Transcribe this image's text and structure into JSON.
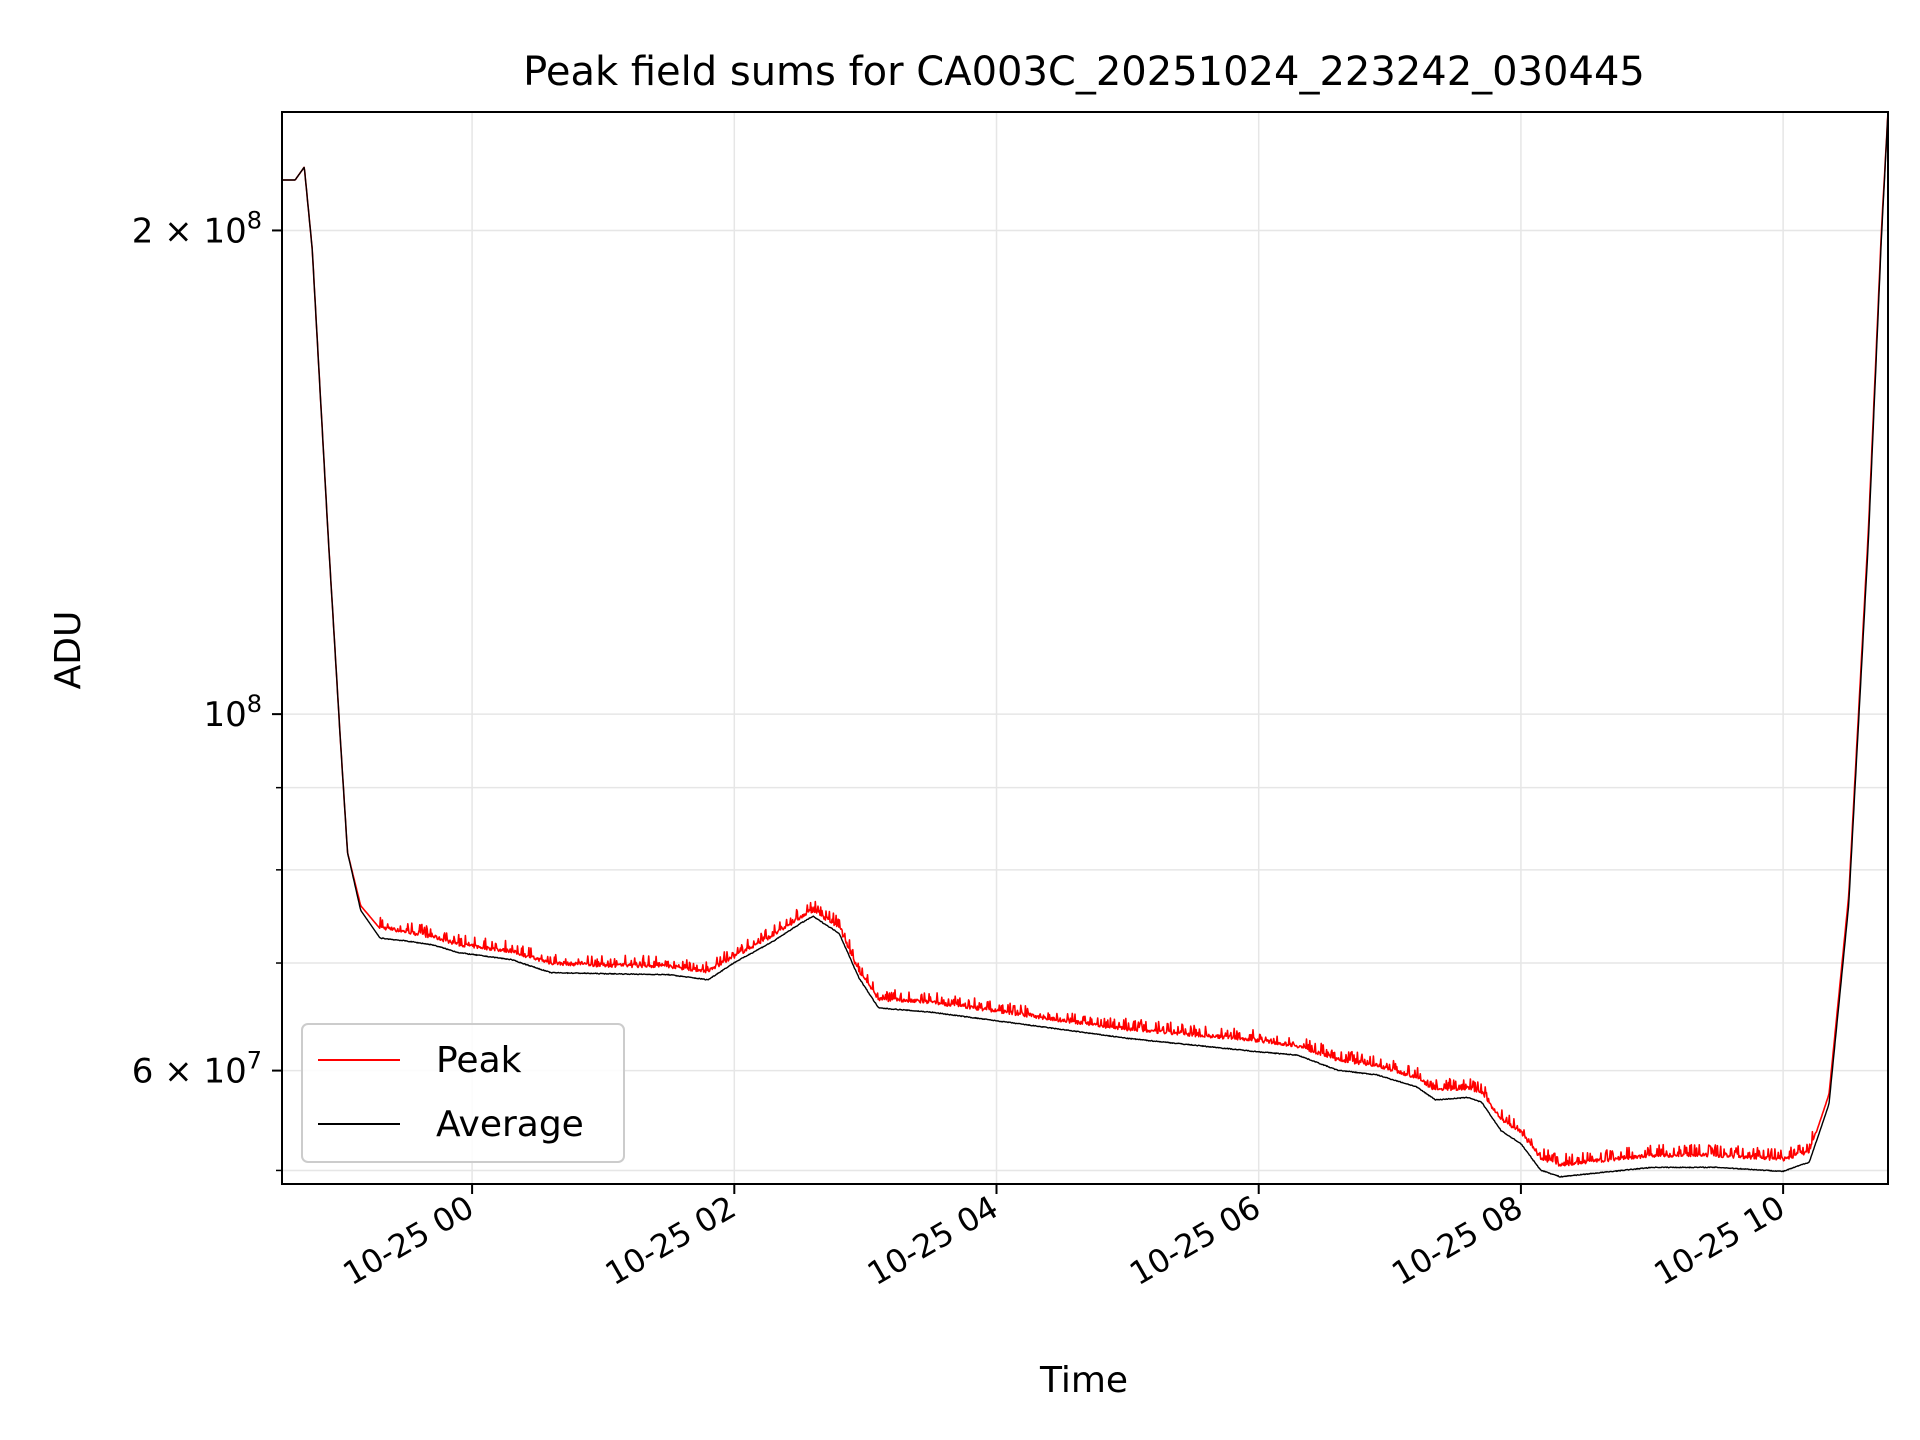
{
  "chart_data": {
    "type": "line",
    "title": "Peak field sums for CA003C_20251024_223242_030445",
    "xlabel": "Time",
    "ylabel": "ADU",
    "yscale": "log",
    "xlim_hours": [
      -1.45,
      10.8
    ],
    "ylim": [
      51000000,
      237000000
    ],
    "grid": true,
    "legend_position": "lower-left",
    "x_ticks": [
      {
        "hour": 0,
        "label": "10-25 00"
      },
      {
        "hour": 2,
        "label": "10-25 02"
      },
      {
        "hour": 4,
        "label": "10-25 04"
      },
      {
        "hour": 6,
        "label": "10-25 06"
      },
      {
        "hour": 8,
        "label": "10-25 08"
      },
      {
        "hour": 10,
        "label": "10-25 10"
      }
    ],
    "y_ticks_major": [
      {
        "value": 100000000,
        "base": "10",
        "exp": "8",
        "mantissa": ""
      },
      {
        "value": 200000000,
        "base": "10",
        "exp": "8",
        "mantissa": "2 × "
      },
      {
        "value": 60000000,
        "base": "10",
        "exp": "7",
        "mantissa": "6 × "
      }
    ],
    "y_ticks_minor": [
      70000000,
      80000000,
      90000000,
      52000000
    ],
    "x_hours_relative_to": "10-25 00",
    "series": [
      {
        "name": "Peak",
        "color": "#ff0000",
        "points": [
          [
            -1.45,
            215000000
          ],
          [
            -1.35,
            215000000
          ],
          [
            -1.28,
            219000000
          ],
          [
            -1.22,
            195000000
          ],
          [
            -1.1,
            130000000
          ],
          [
            -1.0,
            95000000
          ],
          [
            -0.95,
            82000000
          ],
          [
            -0.85,
            76000000
          ],
          [
            -0.7,
            73500000
          ],
          [
            -0.5,
            73000000
          ],
          [
            -0.3,
            72500000
          ],
          [
            -0.1,
            71700000
          ],
          [
            0.3,
            71000000
          ],
          [
            0.6,
            69800000
          ],
          [
            1.0,
            69600000
          ],
          [
            1.5,
            69500000
          ],
          [
            1.8,
            69000000
          ],
          [
            2.0,
            70500000
          ],
          [
            2.3,
            72700000
          ],
          [
            2.5,
            74500000
          ],
          [
            2.6,
            75300000
          ],
          [
            2.8,
            73500000
          ],
          [
            2.95,
            69000000
          ],
          [
            3.1,
            66300000
          ],
          [
            3.5,
            66000000
          ],
          [
            4.0,
            65200000
          ],
          [
            4.5,
            64300000
          ],
          [
            5.0,
            63500000
          ],
          [
            5.5,
            63000000
          ],
          [
            6.0,
            62500000
          ],
          [
            6.3,
            62000000
          ],
          [
            6.6,
            60800000
          ],
          [
            6.9,
            60300000
          ],
          [
            7.2,
            59300000
          ],
          [
            7.35,
            58200000
          ],
          [
            7.6,
            58400000
          ],
          [
            7.7,
            58000000
          ],
          [
            7.85,
            55800000
          ],
          [
            8.0,
            54800000
          ],
          [
            8.15,
            52800000
          ],
          [
            8.3,
            52300000
          ],
          [
            8.6,
            52600000
          ],
          [
            9.0,
            53000000
          ],
          [
            9.5,
            53000000
          ],
          [
            10.0,
            52700000
          ],
          [
            10.2,
            53300000
          ],
          [
            10.35,
            58000000
          ],
          [
            10.5,
            77000000
          ],
          [
            10.65,
            130000000
          ],
          [
            10.75,
            200000000
          ],
          [
            10.8,
            237000000
          ]
        ]
      },
      {
        "name": "Average",
        "color": "#000000",
        "points": [
          [
            -1.45,
            215000000
          ],
          [
            -1.35,
            215000000
          ],
          [
            -1.28,
            219000000
          ],
          [
            -1.22,
            195000000
          ],
          [
            -1.1,
            130000000
          ],
          [
            -1.0,
            95000000
          ],
          [
            -0.95,
            82000000
          ],
          [
            -0.85,
            75500000
          ],
          [
            -0.7,
            72500000
          ],
          [
            -0.5,
            72200000
          ],
          [
            -0.3,
            71800000
          ],
          [
            -0.1,
            71000000
          ],
          [
            0.3,
            70300000
          ],
          [
            0.6,
            69000000
          ],
          [
            1.0,
            68900000
          ],
          [
            1.5,
            68800000
          ],
          [
            1.8,
            68300000
          ],
          [
            2.0,
            70000000
          ],
          [
            2.3,
            72200000
          ],
          [
            2.5,
            74000000
          ],
          [
            2.6,
            74800000
          ],
          [
            2.8,
            73000000
          ],
          [
            2.95,
            68500000
          ],
          [
            3.1,
            65600000
          ],
          [
            3.5,
            65200000
          ],
          [
            4.0,
            64400000
          ],
          [
            4.5,
            63600000
          ],
          [
            5.0,
            62800000
          ],
          [
            5.5,
            62200000
          ],
          [
            6.0,
            61600000
          ],
          [
            6.3,
            61300000
          ],
          [
            6.6,
            60000000
          ],
          [
            6.9,
            59600000
          ],
          [
            7.2,
            58600000
          ],
          [
            7.35,
            57500000
          ],
          [
            7.6,
            57700000
          ],
          [
            7.7,
            57300000
          ],
          [
            7.85,
            55000000
          ],
          [
            8.0,
            54000000
          ],
          [
            8.15,
            52000000
          ],
          [
            8.3,
            51500000
          ],
          [
            8.6,
            51800000
          ],
          [
            9.0,
            52200000
          ],
          [
            9.5,
            52200000
          ],
          [
            10.0,
            51900000
          ],
          [
            10.2,
            52600000
          ],
          [
            10.35,
            57200000
          ],
          [
            10.5,
            76000000
          ],
          [
            10.65,
            128000000
          ],
          [
            10.75,
            198000000
          ],
          [
            10.8,
            237000000
          ]
        ]
      }
    ]
  },
  "colors": {
    "peak": "#ff0000",
    "average": "#000000",
    "grid": "#e6e6e6",
    "axes": "#000000"
  }
}
